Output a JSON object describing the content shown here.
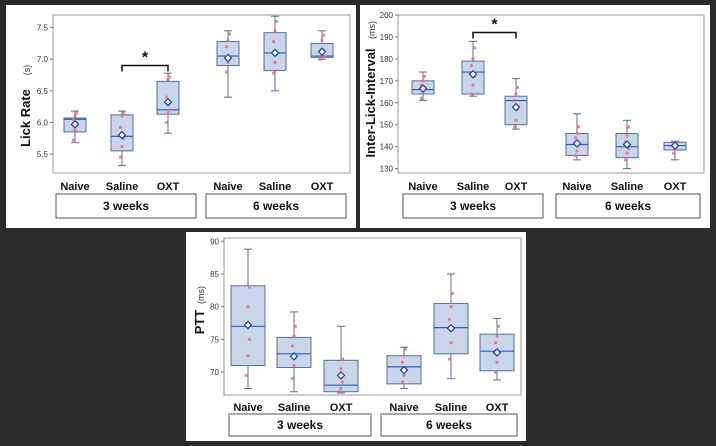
{
  "chart_data": [
    {
      "id": "lick-rate",
      "type": "box",
      "ylabel": "Lick Rate",
      "yunit": "(s)",
      "ylim": [
        5.2,
        7.7
      ],
      "yticks": [
        5.5,
        6.0,
        6.5,
        7.0,
        7.5
      ],
      "ytick_labels": [
        "5.5",
        "6.0",
        "6.5",
        "7.0",
        "7.5"
      ],
      "groups": [
        {
          "label": "3 weeks",
          "categories": [
            "Naive",
            "Saline",
            "OXT"
          ]
        },
        {
          "label": "6 weeks",
          "categories": [
            "Naive",
            "Saline",
            "OXT"
          ]
        }
      ],
      "boxes": [
        {
          "group": "3 weeks",
          "category": "Naive",
          "min": 5.68,
          "q1": 5.85,
          "median": 6.05,
          "q3": 6.07,
          "max": 6.18,
          "mean": 5.97,
          "points": [
            5.72,
            5.88,
            6.0,
            6.05,
            6.1,
            6.15
          ]
        },
        {
          "group": "3 weeks",
          "category": "Saline",
          "min": 5.32,
          "q1": 5.55,
          "median": 5.78,
          "q3": 6.12,
          "max": 6.18,
          "mean": 5.8,
          "points": [
            5.45,
            5.62,
            5.75,
            5.92,
            6.1,
            6.15
          ]
        },
        {
          "group": "3 weeks",
          "category": "OXT",
          "min": 5.83,
          "q1": 6.13,
          "median": 6.2,
          "q3": 6.65,
          "max": 6.78,
          "mean": 6.32,
          "points": [
            6.0,
            6.15,
            6.2,
            6.4,
            6.68,
            6.72
          ]
        },
        {
          "group": "6 weeks",
          "category": "Naive",
          "min": 6.4,
          "q1": 6.9,
          "median": 7.05,
          "q3": 7.28,
          "max": 7.45,
          "mean": 7.02,
          "points": [
            6.8,
            6.95,
            7.05,
            7.2,
            7.3,
            7.4
          ]
        },
        {
          "group": "6 weeks",
          "category": "Saline",
          "min": 6.5,
          "q1": 6.82,
          "median": 7.1,
          "q3": 7.42,
          "max": 7.68,
          "mean": 7.1,
          "points": [
            6.78,
            6.95,
            7.08,
            7.28,
            7.45,
            7.6
          ]
        },
        {
          "group": "6 weeks",
          "category": "OXT",
          "min": 7.0,
          "q1": 7.03,
          "median": 7.05,
          "q3": 7.25,
          "max": 7.45,
          "mean": 7.12,
          "points": [
            7.0,
            7.02,
            7.05,
            7.12,
            7.3,
            7.38
          ]
        }
      ],
      "significance": [
        {
          "from": "Saline",
          "to": "OXT",
          "group": "3 weeks",
          "label": "*",
          "y": 6.9
        }
      ]
    },
    {
      "id": "inter-lick-interval",
      "type": "box",
      "ylabel": "Inter-Lick-Interval",
      "yunit": "(ms)",
      "ylim": [
        128,
        200
      ],
      "yticks": [
        130,
        140,
        150,
        160,
        170,
        180,
        190,
        200
      ],
      "ytick_labels": [
        "130",
        "140",
        "150",
        "160",
        "170",
        "180",
        "190",
        "200"
      ],
      "groups": [
        {
          "label": "3 weeks",
          "categories": [
            "Naive",
            "Saline",
            "OXT"
          ]
        },
        {
          "label": "6 weeks",
          "categories": [
            "Naive",
            "Saline",
            "OXT"
          ]
        }
      ],
      "boxes": [
        {
          "group": "3 weeks",
          "category": "Naive",
          "min": 161,
          "q1": 164,
          "median": 166,
          "q3": 170,
          "max": 174,
          "mean": 166.5,
          "points": [
            162,
            165,
            167,
            168,
            170,
            172
          ]
        },
        {
          "group": "3 weeks",
          "category": "Saline",
          "min": 163,
          "q1": 164,
          "median": 174,
          "q3": 179,
          "max": 188,
          "mean": 173,
          "points": [
            164,
            168,
            172,
            177,
            180,
            185
          ]
        },
        {
          "group": "3 weeks",
          "category": "OXT",
          "min": 148,
          "q1": 150,
          "median": 161,
          "q3": 163,
          "max": 171,
          "mean": 158,
          "points": [
            149,
            152,
            157,
            161,
            164,
            167
          ]
        },
        {
          "group": "6 weeks",
          "category": "Naive",
          "min": 134,
          "q1": 136,
          "median": 141,
          "q3": 146,
          "max": 155,
          "mean": 141.5,
          "points": [
            136,
            138,
            141,
            144,
            146,
            149
          ]
        },
        {
          "group": "6 weeks",
          "category": "Saline",
          "min": 130,
          "q1": 135,
          "median": 140,
          "q3": 146,
          "max": 152,
          "mean": 141,
          "points": [
            134,
            137,
            139,
            142,
            145,
            149
          ]
        },
        {
          "group": "6 weeks",
          "category": "OXT",
          "min": 134,
          "q1": 138.5,
          "median": 140.5,
          "q3": 142,
          "max": 142.5,
          "mean": 140.5,
          "points": [
            137,
            139,
            140,
            141,
            142
          ]
        }
      ],
      "significance": [
        {
          "from": "Saline",
          "to": "OXT",
          "group": "3 weeks",
          "label": "*",
          "y": 192
        }
      ]
    },
    {
      "id": "ptt",
      "type": "box",
      "ylabel": "PTT",
      "yunit": "(ms)",
      "ylim": [
        66.5,
        90.5
      ],
      "yticks": [
        70,
        75,
        80,
        85,
        90
      ],
      "ytick_labels": [
        "70",
        "75",
        "80",
        "85",
        "90"
      ],
      "groups": [
        {
          "label": "3 weeks",
          "categories": [
            "Naive",
            "Saline",
            "OXT"
          ]
        },
        {
          "label": "6 weeks",
          "categories": [
            "Naive",
            "Saline",
            "OXT"
          ]
        }
      ],
      "boxes": [
        {
          "group": "3 weeks",
          "category": "Naive",
          "min": 67.5,
          "q1": 71,
          "median": 77,
          "q3": 83.2,
          "max": 88.8,
          "mean": 77.2,
          "points": [
            69.5,
            72.5,
            75,
            77.5,
            80,
            83
          ]
        },
        {
          "group": "3 weeks",
          "category": "Saline",
          "min": 67,
          "q1": 70.7,
          "median": 72.8,
          "q3": 75.3,
          "max": 79.2,
          "mean": 72.4,
          "points": [
            69,
            71,
            72.5,
            74,
            75.5,
            77
          ]
        },
        {
          "group": "3 weeks",
          "category": "OXT",
          "min": 66.8,
          "q1": 67,
          "median": 68,
          "q3": 71.8,
          "max": 77,
          "mean": 69.5,
          "points": [
            67,
            67.5,
            68.5,
            69.5,
            70.5,
            72
          ]
        },
        {
          "group": "6 weeks",
          "category": "Naive",
          "min": 67.5,
          "q1": 68.2,
          "median": 70.8,
          "q3": 72.5,
          "max": 73.8,
          "mean": 70.3,
          "points": [
            68.5,
            69.5,
            70.5,
            71.5,
            72.5,
            73.5
          ]
        },
        {
          "group": "6 weeks",
          "category": "Saline",
          "min": 69,
          "q1": 72.8,
          "median": 76.8,
          "q3": 80.5,
          "max": 85,
          "mean": 76.7,
          "points": [
            72,
            74.5,
            76.5,
            78,
            80,
            82
          ]
        },
        {
          "group": "6 weeks",
          "category": "OXT",
          "min": 68.8,
          "q1": 70.2,
          "median": 73.2,
          "q3": 75.8,
          "max": 78.2,
          "mean": 73,
          "points": [
            70,
            71.5,
            73,
            74.5,
            75.5,
            77
          ]
        }
      ],
      "significance": []
    }
  ]
}
